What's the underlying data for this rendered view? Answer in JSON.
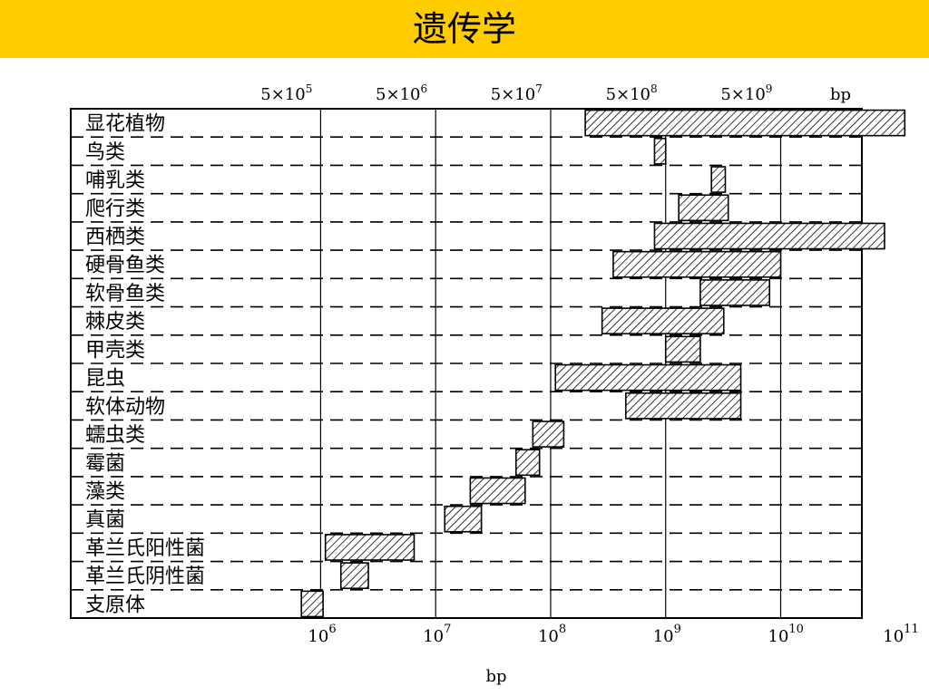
{
  "slide": {
    "title": "遗传学"
  },
  "colors": {
    "title_bar": "#ffcc00",
    "bar_hatch": "#000000",
    "text": "#000000"
  },
  "chart_data": {
    "type": "bar",
    "orientation": "horizontal-range",
    "x_scale": "log",
    "xlim": [
      316000,
      126000000000
    ],
    "xlabel": "bp",
    "top_axis_label": "bp",
    "top_ticks": [
      {
        "value": 500000,
        "label": "5×10",
        "exp": "5"
      },
      {
        "value": 5000000,
        "label": "5×10",
        "exp": "6"
      },
      {
        "value": 50000000,
        "label": "5×10",
        "exp": "7"
      },
      {
        "value": 500000000,
        "label": "5×10",
        "exp": "8"
      },
      {
        "value": 5000000000,
        "label": "5×10",
        "exp": "9"
      }
    ],
    "bottom_ticks": [
      {
        "value": 1000000,
        "label": "10",
        "exp": "6"
      },
      {
        "value": 10000000,
        "label": "10",
        "exp": "7"
      },
      {
        "value": 100000000,
        "label": "10",
        "exp": "8"
      },
      {
        "value": 1000000000,
        "label": "10",
        "exp": "9"
      },
      {
        "value": 10000000000,
        "label": "10",
        "exp": "10"
      },
      {
        "value": 100000000000,
        "label": "10",
        "exp": "11"
      }
    ],
    "categories": [
      "显花植物",
      "鸟类",
      "哺乳类",
      "爬行类",
      "西栖类",
      "硬骨鱼类",
      "软骨鱼类",
      "棘皮类",
      "甲壳类",
      "昆虫",
      "软体动物",
      "蠕虫类",
      "霉菌",
      "藻类",
      "真菌",
      "革兰氏阳性菌",
      "革兰氏阴性菌",
      "支原体"
    ],
    "ranges": [
      [
        200000000,
        120000000000
      ],
      [
        800000000,
        1000000000
      ],
      [
        2500000000,
        3300000000
      ],
      [
        1300000000,
        3500000000
      ],
      [
        800000000,
        80000000000
      ],
      [
        350000000,
        10000000000
      ],
      [
        2000000000,
        8000000000
      ],
      [
        280000000,
        3200000000
      ],
      [
        1000000000,
        2000000000
      ],
      [
        110000000,
        4500000000
      ],
      [
        450000000,
        4500000000
      ],
      [
        70000000,
        130000000
      ],
      [
        50000000,
        80000000
      ],
      [
        20000000,
        60000000
      ],
      [
        12000000,
        25000000
      ],
      [
        1100000,
        6500000
      ],
      [
        1500000,
        2600000
      ],
      [
        680000,
        1050000
      ]
    ],
    "grid": "dashed-horizontal"
  }
}
